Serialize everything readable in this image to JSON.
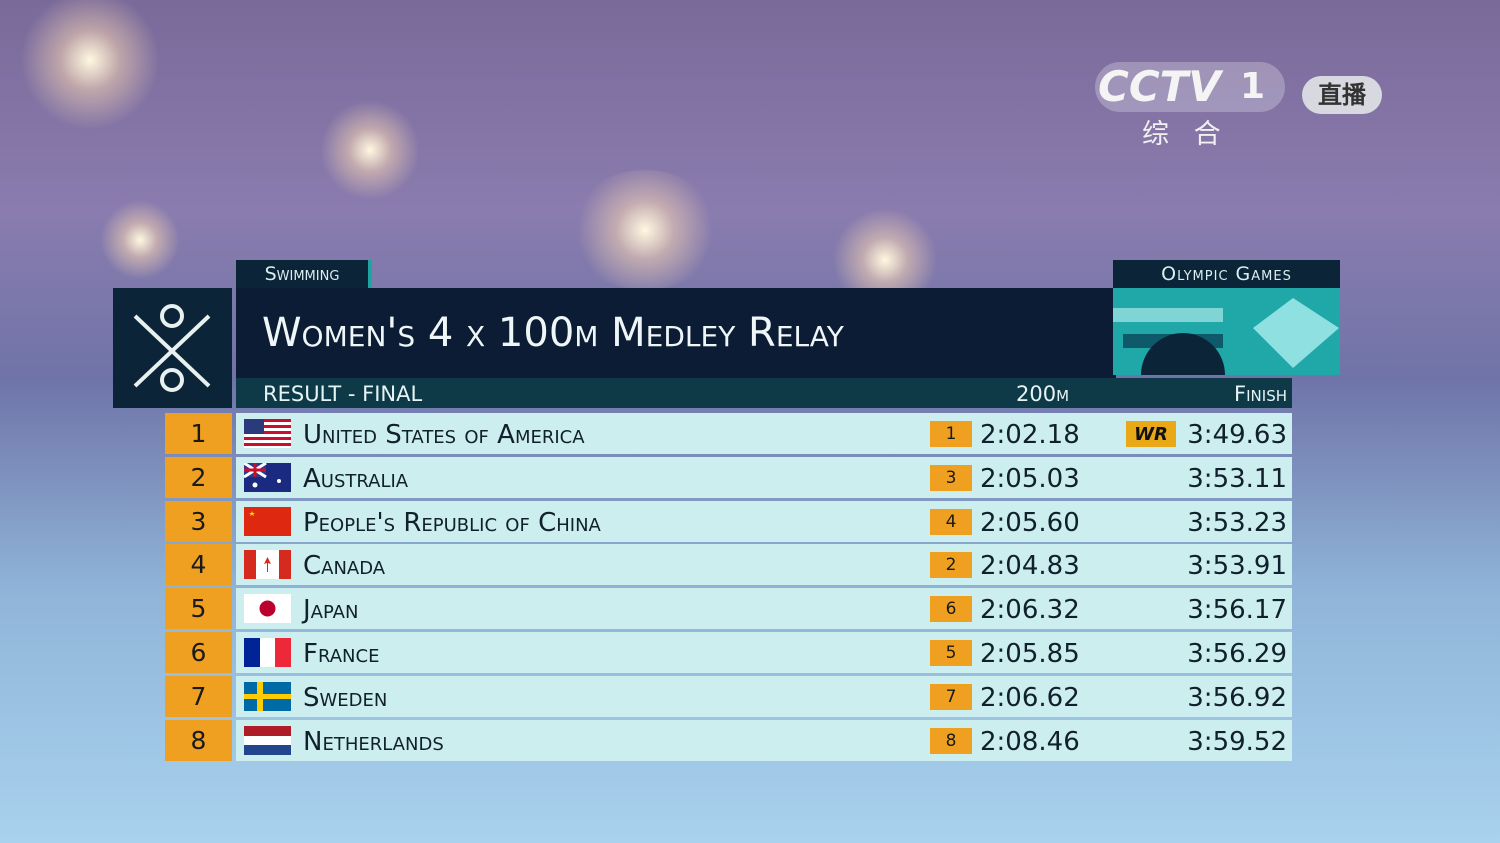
{
  "channel": {
    "logo": "CCTV",
    "number": "1",
    "subtitle": "综 合",
    "live": "直播"
  },
  "header": {
    "sport": "Swimming",
    "event": "Women's 4 x 100m Medley Relay",
    "games": "Olympic Games",
    "phase": "RESULT - FINAL"
  },
  "table": {
    "columns": {
      "split": "200m",
      "finish": "Finish"
    },
    "rows": [
      {
        "rank": 1,
        "country": "United States of America",
        "split_rank": 1,
        "split": "2:02.18",
        "record": "WR",
        "finish": "3:49.63"
      },
      {
        "rank": 2,
        "country": "Australia",
        "split_rank": 3,
        "split": "2:05.03",
        "finish": "3:53.11"
      },
      {
        "rank": 3,
        "country": "People's Republic of China",
        "split_rank": 4,
        "split": "2:05.60",
        "finish": "3:53.23"
      },
      {
        "rank": 4,
        "country": "Canada",
        "split_rank": 2,
        "split": "2:04.83",
        "finish": "3:53.91"
      },
      {
        "rank": 5,
        "country": "Japan",
        "split_rank": 6,
        "split": "2:06.32",
        "finish": "3:56.17"
      },
      {
        "rank": 6,
        "country": "France",
        "split_rank": 5,
        "split": "2:05.85",
        "finish": "3:56.29"
      },
      {
        "rank": 7,
        "country": "Sweden",
        "split_rank": 7,
        "split": "2:06.62",
        "finish": "3:56.92"
      },
      {
        "rank": 8,
        "country": "Netherlands",
        "split_rank": 8,
        "split": "2:08.46",
        "finish": "3:59.52"
      }
    ]
  }
}
